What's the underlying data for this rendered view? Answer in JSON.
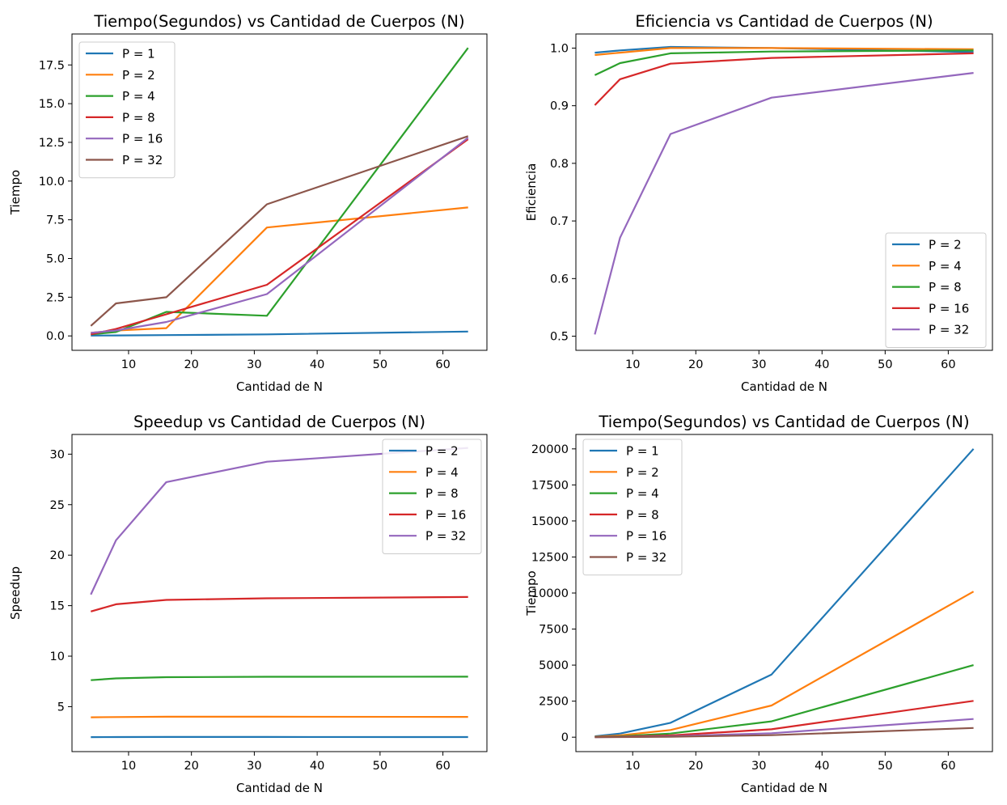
{
  "colors": {
    "P = 1": "#1f77b4",
    "P = 2": "#ff7f0e",
    "P = 4": "#2ca02c",
    "P = 8": "#d62728",
    "P = 16": "#9467bd",
    "P = 32": "#8c564b",
    "speedup_p2": "#1f77b4",
    "speedup_p4": "#ff7f0e",
    "speedup_p8": "#2ca02c",
    "speedup_p16": "#d62728",
    "speedup_p32": "#9467bd"
  },
  "chart_data": [
    {
      "type": "line",
      "title": "Tiempo(Segundos) vs Cantidad de Cuerpos (N)",
      "xlabel": "Cantidad de N",
      "ylabel": "Tiempo",
      "x": [
        4,
        8,
        16,
        32,
        64
      ],
      "xlim": [
        1,
        67
      ],
      "ylim": [
        -0.93,
        19.5
      ],
      "xticks": [
        10,
        20,
        30,
        40,
        50,
        60
      ],
      "yticks": [
        0.0,
        2.5,
        5.0,
        7.5,
        10.0,
        12.5,
        15.0,
        17.5
      ],
      "ytick_labels": [
        "0.0",
        "2.5",
        "5.0",
        "7.5",
        "10.0",
        "12.5",
        "15.0",
        "17.5"
      ],
      "grid": false,
      "legend_position": "upper-left",
      "series": [
        {
          "name": "P = 1",
          "color": "#1f77b4",
          "values": [
            0.02,
            0.03,
            0.05,
            0.1,
            0.28
          ]
        },
        {
          "name": "P = 2",
          "color": "#ff7f0e",
          "values": [
            0.2,
            0.35,
            0.5,
            7.0,
            8.3
          ]
        },
        {
          "name": "P = 4",
          "color": "#2ca02c",
          "values": [
            0.1,
            0.25,
            1.55,
            1.3,
            18.6
          ]
        },
        {
          "name": "P = 8",
          "color": "#d62728",
          "values": [
            0.1,
            0.45,
            1.4,
            3.3,
            12.7
          ]
        },
        {
          "name": "P = 16",
          "color": "#9467bd",
          "values": [
            0.2,
            0.35,
            0.9,
            2.7,
            12.8
          ]
        },
        {
          "name": "P = 32",
          "color": "#8c564b",
          "values": [
            0.65,
            2.1,
            2.5,
            8.5,
            12.9
          ]
        }
      ]
    },
    {
      "type": "line",
      "title": "Eficiencia vs Cantidad de Cuerpos (N)",
      "xlabel": "Cantidad de N",
      "ylabel": "Eficiencia",
      "x": [
        4,
        8,
        16,
        32,
        64
      ],
      "xlim": [
        1,
        67
      ],
      "ylim": [
        0.4755,
        1.0245
      ],
      "xticks": [
        10,
        20,
        30,
        40,
        50,
        60
      ],
      "yticks": [
        0.5,
        0.6,
        0.7,
        0.8,
        0.9,
        1.0
      ],
      "ytick_labels": [
        "0.5",
        "0.6",
        "0.7",
        "0.8",
        "0.9",
        "1.0"
      ],
      "grid": false,
      "legend_position": "lower-right",
      "series": [
        {
          "name": "P = 2",
          "color": "#1f77b4",
          "values": [
            0.992,
            0.996,
            1.002,
            1.0,
            0.993
          ]
        },
        {
          "name": "P = 4",
          "color": "#ff7f0e",
          "values": [
            0.988,
            0.992,
            1.0,
            1.0,
            0.998
          ]
        },
        {
          "name": "P = 8",
          "color": "#2ca02c",
          "values": [
            0.953,
            0.974,
            0.991,
            0.994,
            0.996
          ]
        },
        {
          "name": "P = 16",
          "color": "#d62728",
          "values": [
            0.901,
            0.946,
            0.973,
            0.983,
            0.991
          ]
        },
        {
          "name": "P = 32",
          "color": "#9467bd",
          "values": [
            0.503,
            0.671,
            0.851,
            0.914,
            0.957
          ]
        }
      ]
    },
    {
      "type": "line",
      "title": "Speedup vs Cantidad de Cuerpos (N)",
      "xlabel": "Cantidad de N",
      "ylabel": "Speedup",
      "x": [
        4,
        8,
        16,
        32,
        64
      ],
      "xlim": [
        1,
        67
      ],
      "ylim": [
        0.55,
        31.95
      ],
      "xticks": [
        10,
        20,
        30,
        40,
        50,
        60
      ],
      "yticks": [
        5,
        10,
        15,
        20,
        25,
        30
      ],
      "ytick_labels": [
        "5",
        "10",
        "15",
        "20",
        "25",
        "30"
      ],
      "grid": false,
      "legend_position": "upper-right",
      "series": [
        {
          "name": "P = 2",
          "color": "#1f77b4",
          "values": [
            1.98,
            1.99,
            2.0,
            2.0,
            1.99
          ]
        },
        {
          "name": "P = 4",
          "color": "#ff7f0e",
          "values": [
            3.95,
            3.97,
            4.0,
            4.0,
            3.99
          ]
        },
        {
          "name": "P = 8",
          "color": "#2ca02c",
          "values": [
            7.62,
            7.8,
            7.92,
            7.96,
            7.97
          ]
        },
        {
          "name": "P = 16",
          "color": "#d62728",
          "values": [
            14.42,
            15.14,
            15.57,
            15.73,
            15.86
          ]
        },
        {
          "name": "P = 32",
          "color": "#9467bd",
          "values": [
            16.1,
            21.47,
            27.23,
            29.25,
            30.62
          ]
        }
      ]
    },
    {
      "type": "line",
      "title": "Tiempo(Segundos) vs Cantidad de Cuerpos (N)",
      "xlabel": "Cantidad de N",
      "ylabel": "Tiempo",
      "x": [
        4,
        8,
        16,
        32,
        64
      ],
      "xlim": [
        1,
        67
      ],
      "ylim": [
        -1000,
        21000
      ],
      "xticks": [
        10,
        20,
        30,
        40,
        50,
        60
      ],
      "yticks": [
        0,
        2500,
        5000,
        7500,
        10000,
        12500,
        15000,
        17500,
        20000
      ],
      "ytick_labels": [
        "0",
        "2500",
        "5000",
        "7500",
        "10000",
        "12500",
        "15000",
        "17500",
        "20000"
      ],
      "grid": false,
      "legend_position": "upper-left",
      "series": [
        {
          "name": "P = 1",
          "color": "#1f77b4",
          "values": [
            60,
            250,
            1000,
            4350,
            20000
          ]
        },
        {
          "name": "P = 2",
          "color": "#ff7f0e",
          "values": [
            30,
            120,
            500,
            2200,
            10100
          ]
        },
        {
          "name": "P = 4",
          "color": "#2ca02c",
          "values": [
            15,
            60,
            250,
            1100,
            5000
          ]
        },
        {
          "name": "P = 8",
          "color": "#d62728",
          "values": [
            8,
            30,
            125,
            550,
            2520
          ]
        },
        {
          "name": "P = 16",
          "color": "#9467bd",
          "values": [
            4,
            15,
            60,
            275,
            1260
          ]
        },
        {
          "name": "P = 32",
          "color": "#8c564b",
          "values": [
            2,
            8,
            30,
            140,
            640
          ]
        }
      ]
    }
  ]
}
